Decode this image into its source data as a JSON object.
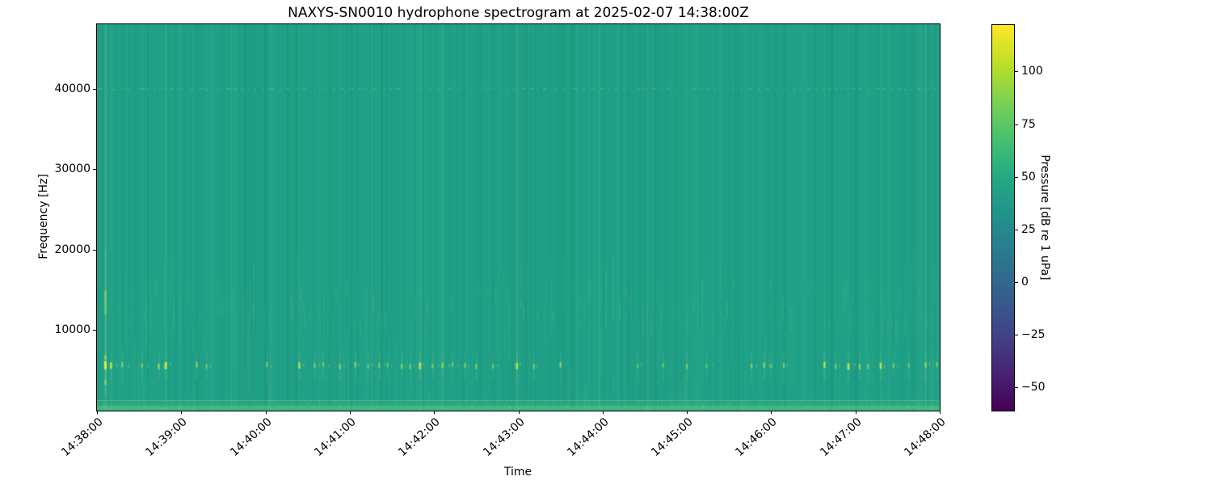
{
  "chart_data": {
    "type": "heatmap",
    "title": "NAXYS-SN0010 hydrophone spectrogram at 2025-02-07 14:38:00Z",
    "xlabel": "Time",
    "ylabel": "Frequency [Hz]",
    "grid": false,
    "x_axis": {
      "range_seconds": [
        0,
        600
      ],
      "tick_labels": [
        "14:38:00",
        "14:39:00",
        "14:40:00",
        "14:41:00",
        "14:42:00",
        "14:43:00",
        "14:44:00",
        "14:45:00",
        "14:46:00",
        "14:47:00",
        "14:48:00"
      ]
    },
    "y_axis": {
      "range_hz": [
        0,
        48000
      ],
      "ticks": [
        {
          "value": 10000,
          "label": "10000"
        },
        {
          "value": 20000,
          "label": "20000"
        },
        {
          "value": 30000,
          "label": "30000"
        },
        {
          "value": 40000,
          "label": "40000"
        }
      ]
    },
    "colorbar": {
      "label": "Pressure [dB re 1 uPa]",
      "colormap": "viridis",
      "vmin": -61,
      "vmax": 122,
      "ticks": [
        {
          "value": 100,
          "label": "100"
        },
        {
          "value": 75,
          "label": "75"
        },
        {
          "value": 50,
          "label": "50"
        },
        {
          "value": 25,
          "label": "25"
        },
        {
          "value": 0,
          "label": "0"
        },
        {
          "value": -25,
          "label": "−25"
        },
        {
          "value": -50,
          "label": "−50"
        }
      ],
      "viridis_stops": [
        [
          0.0,
          "#440154"
        ],
        [
          0.1,
          "#482475"
        ],
        [
          0.2,
          "#414487"
        ],
        [
          0.3,
          "#355f8d"
        ],
        [
          0.4,
          "#2a788e"
        ],
        [
          0.5,
          "#21918c"
        ],
        [
          0.6,
          "#22a884"
        ],
        [
          0.7,
          "#44bf70"
        ],
        [
          0.8,
          "#7ad151"
        ],
        [
          0.9,
          "#bddf26"
        ],
        [
          1.0,
          "#fde725"
        ]
      ]
    },
    "heatmap": {
      "base_color": "#1fa187",
      "ambient_level_db": 40,
      "render_seed": 42,
      "hf_line_hz": 40000,
      "click_band_hz": 5600,
      "mid_band_hz": [
        11000,
        16500
      ],
      "surface_band_hz": 1300,
      "transient_columns_s": [
        6,
        49,
        144,
        230,
        299,
        420,
        518,
        535,
        558,
        590
      ],
      "click_events": [
        [
          6,
          1.0
        ],
        [
          10,
          0.8
        ],
        [
          18,
          0.55
        ],
        [
          32,
          0.5
        ],
        [
          44,
          0.65
        ],
        [
          49,
          0.9
        ],
        [
          71,
          0.6
        ],
        [
          78,
          0.45
        ],
        [
          121,
          0.5
        ],
        [
          144,
          0.75
        ],
        [
          155,
          0.5
        ],
        [
          161,
          0.45
        ],
        [
          173,
          0.55
        ],
        [
          184,
          0.6
        ],
        [
          193,
          0.45
        ],
        [
          201,
          0.5
        ],
        [
          207,
          0.4
        ],
        [
          217,
          0.55
        ],
        [
          223,
          0.5
        ],
        [
          230,
          0.85
        ],
        [
          239,
          0.5
        ],
        [
          246,
          0.6
        ],
        [
          253,
          0.45
        ],
        [
          262,
          0.5
        ],
        [
          270,
          0.55
        ],
        [
          282,
          0.45
        ],
        [
          299,
          0.8
        ],
        [
          311,
          0.5
        ],
        [
          330,
          0.6
        ],
        [
          385,
          0.4
        ],
        [
          403,
          0.45
        ],
        [
          420,
          0.5
        ],
        [
          434,
          0.4
        ],
        [
          466,
          0.55
        ],
        [
          475,
          0.6
        ],
        [
          480,
          0.45
        ],
        [
          489,
          0.5
        ],
        [
          518,
          0.75
        ],
        [
          526,
          0.5
        ],
        [
          535,
          0.85
        ],
        [
          543,
          0.6
        ],
        [
          549,
          0.5
        ],
        [
          558,
          0.8
        ],
        [
          567,
          0.5
        ],
        [
          578,
          0.45
        ],
        [
          590,
          0.6
        ],
        [
          598,
          0.5
        ]
      ],
      "start_column": {
        "time_s": 6,
        "blobs": [
          {
            "hz": 5600,
            "h": 10,
            "i": 1.0
          },
          {
            "hz": 6600,
            "h": 5,
            "i": 0.7
          },
          {
            "hz": 14000,
            "h": 18,
            "i": 0.45
          },
          {
            "hz": 12500,
            "h": 10,
            "i": 0.35
          },
          {
            "hz": 3500,
            "h": 6,
            "i": 0.55
          }
        ]
      }
    }
  }
}
